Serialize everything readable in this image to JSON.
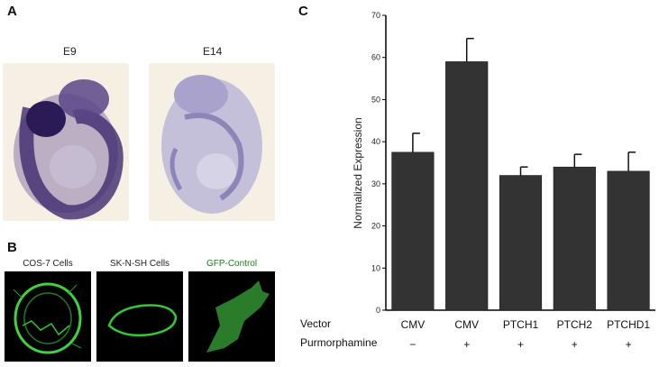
{
  "panels": {
    "a": {
      "letter": "A",
      "stages": [
        "E9",
        "E14"
      ]
    },
    "b": {
      "letter": "B",
      "cells": [
        {
          "title": "COS-7 Cells",
          "color": "#111111"
        },
        {
          "title": "SK-N-SH Cells",
          "color": "#111111"
        },
        {
          "title": "GFP-Control",
          "color": "#1e7a1e"
        }
      ]
    },
    "c": {
      "letter": "C",
      "row_labels": {
        "vector": "Vector",
        "drug": "Purmorphamine"
      }
    }
  },
  "chart_data": {
    "type": "bar",
    "categories": [
      "CMV",
      "CMV",
      "PTCH1",
      "PTCH2",
      "PTCHD1"
    ],
    "treatment": [
      "−",
      "+",
      "+",
      "+",
      "+"
    ],
    "values": [
      37.5,
      59,
      32,
      34,
      33
    ],
    "errors": [
      4.5,
      5.5,
      2,
      3,
      4.5
    ],
    "ylabel": "Normalized Expression",
    "ylim": [
      0,
      70
    ],
    "yticks": [
      0,
      10,
      20,
      30,
      40,
      50,
      60,
      70
    ],
    "bar_color": "#333333",
    "grid": false
  }
}
